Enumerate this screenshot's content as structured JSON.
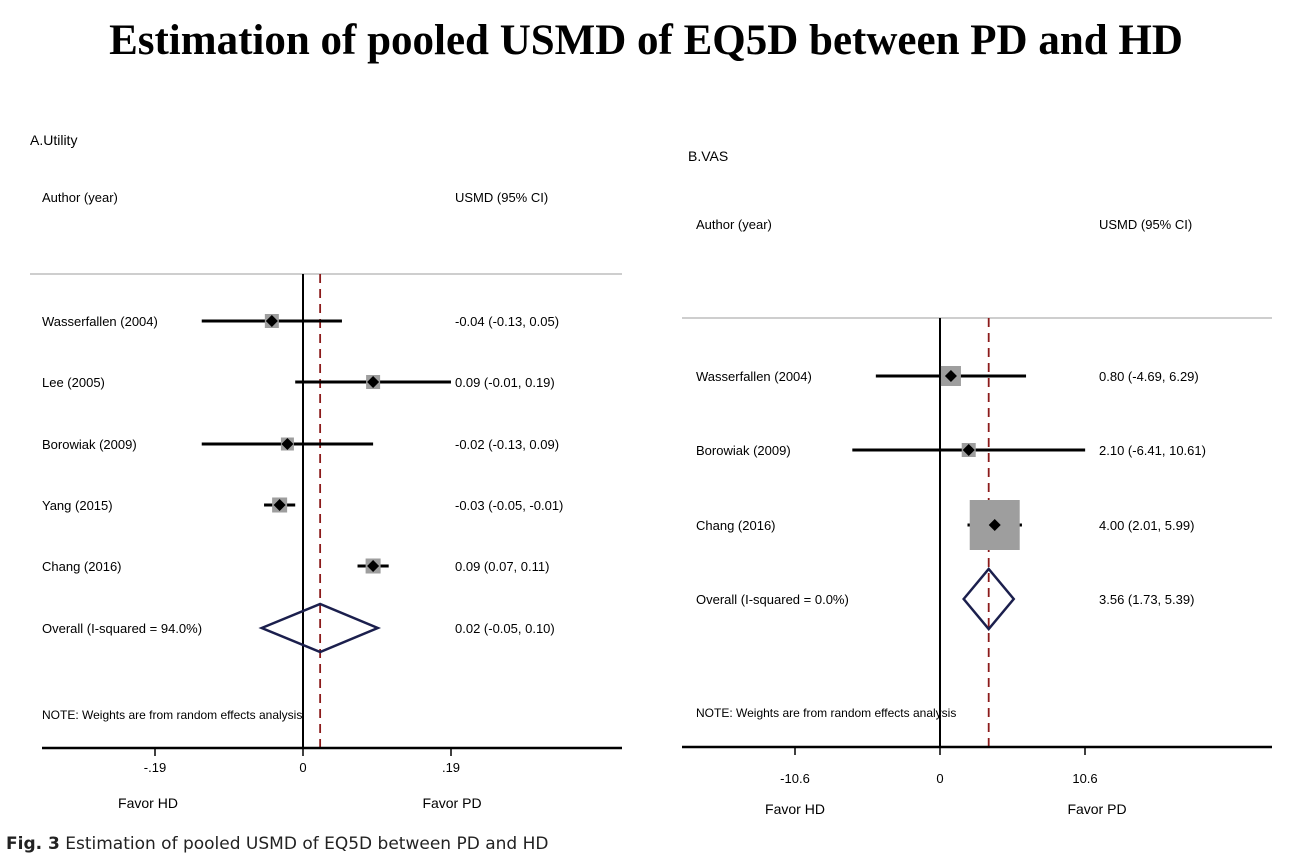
{
  "title": "Estimation of pooled USMD of EQ5D between PD and HD",
  "caption": {
    "label": "Fig. 3",
    "text": "Estimation of pooled USMD of EQ5D between PD and HD"
  },
  "colors": {
    "ci_line": "#000000",
    "box": "#9e9e9e",
    "diamond": "#1b1f4d",
    "overall_line": "#8b1a1a",
    "separator": "#bdbdbd"
  },
  "chart_data": [
    {
      "type": "forest",
      "panel_label": "A.Utility",
      "col_author": "Author (year)",
      "col_estimate": "USMD (95% CI)",
      "xlim": [
        -0.28,
        0.28
      ],
      "xticks": [
        {
          "value": -0.19,
          "label": "-.19"
        },
        {
          "value": 0,
          "label": "0"
        },
        {
          "value": 0.19,
          "label": ".19"
        }
      ],
      "favor_left": "Favor HD",
      "favor_right": "Favor PD",
      "note": "NOTE: Weights are from random effects analysis",
      "studies": [
        {
          "name": "Wasserfallen (2004)",
          "est": -0.04,
          "lo": -0.13,
          "hi": 0.05,
          "label": "-0.04 (-0.13, 0.05)",
          "box": 14
        },
        {
          "name": "Lee (2005)",
          "est": 0.09,
          "lo": -0.01,
          "hi": 0.19,
          "label": "0.09 (-0.01, 0.19)",
          "box": 14
        },
        {
          "name": "Borowiak (2009)",
          "est": -0.02,
          "lo": -0.13,
          "hi": 0.09,
          "label": "-0.02 (-0.13, 0.09)",
          "box": 13
        },
        {
          "name": "Yang (2015)",
          "est": -0.03,
          "lo": -0.05,
          "hi": -0.01,
          "label": "-0.03 (-0.05, -0.01)",
          "box": 15
        },
        {
          "name": "Chang (2016)",
          "est": 0.09,
          "lo": 0.07,
          "hi": 0.11,
          "label": "0.09 (0.07, 0.11)",
          "box": 15
        }
      ],
      "overall": {
        "name": "Overall  (I-squared = 94.0%)",
        "est": 0.022,
        "lo": -0.053,
        "hi": 0.096,
        "label": "0.02 (-0.05, 0.10)"
      }
    },
    {
      "type": "forest",
      "panel_label": "B.VAS",
      "col_author": "Author (year)",
      "col_estimate": "USMD (95% CI)",
      "xlim": [
        -15.9,
        15.9
      ],
      "xticks": [
        {
          "value": -10.6,
          "label": "-10.6"
        },
        {
          "value": 0,
          "label": "0"
        },
        {
          "value": 10.6,
          "label": "10.6"
        }
      ],
      "favor_left": "Favor HD",
      "favor_right": "Favor PD",
      "note": "NOTE: Weights are from random effects analysis",
      "studies": [
        {
          "name": "Wasserfallen (2004)",
          "est": 0.8,
          "lo": -4.69,
          "hi": 6.29,
          "label": "0.80 (-4.69, 6.29)",
          "box": 20
        },
        {
          "name": "Borowiak (2009)",
          "est": 2.1,
          "lo": -6.41,
          "hi": 10.61,
          "label": "2.10 (-6.41, 10.61)",
          "box": 14
        },
        {
          "name": "Chang (2016)",
          "est": 4.0,
          "lo": 2.01,
          "hi": 5.99,
          "label": "4.00 (2.01, 5.99)",
          "box": 50
        }
      ],
      "overall": {
        "name": "Overall  (I-squared = 0.0%)",
        "est": 3.56,
        "lo": 1.73,
        "hi": 5.39,
        "label": "3.56 (1.73, 5.39)"
      }
    }
  ]
}
